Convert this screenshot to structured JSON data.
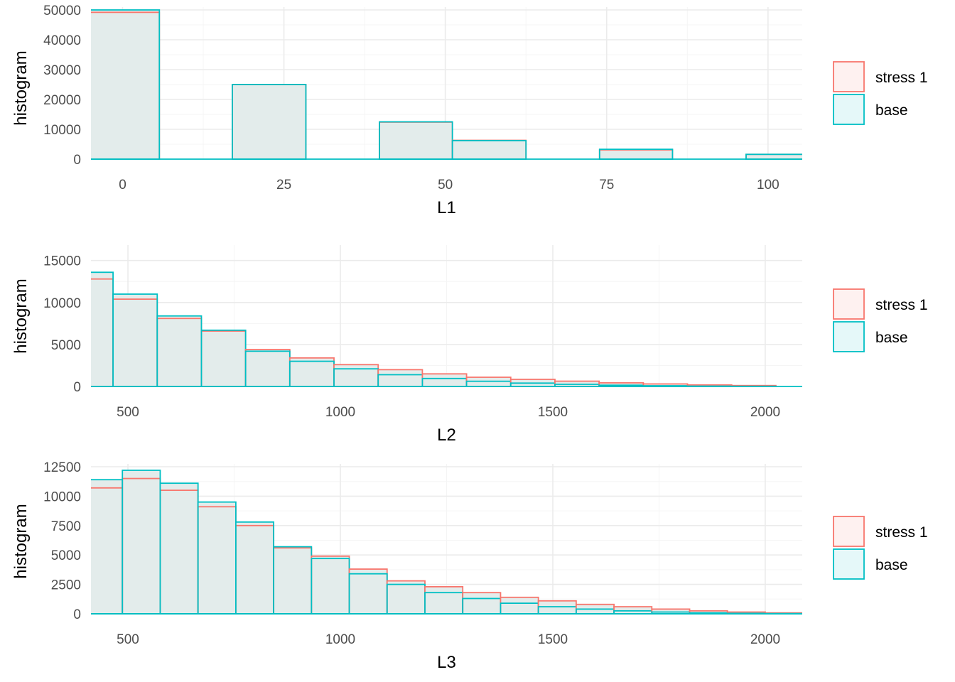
{
  "legend": {
    "entries": [
      {
        "label": "stress 1",
        "stroke": "#F8766D",
        "fill": "#FEF1F0"
      },
      {
        "label": "base",
        "stroke": "#00BFC4",
        "fill": "#E5F8F9"
      }
    ]
  },
  "colors": {
    "stress": "#F8766D",
    "base": "#00BFC4",
    "overlap_fill": "#E3ECEB",
    "grid_major": "#EBEBEB",
    "grid_minor": "#F5F5F5",
    "background": "#FFFFFF"
  },
  "chart_data": [
    {
      "type": "bar",
      "subtype": "overlaid-histogram",
      "xlabel": "L1",
      "ylabel": "histogram",
      "xlim": [
        -4.9,
        105.3
      ],
      "ylim": [
        0,
        50000
      ],
      "x_ticks": [
        0,
        25,
        50,
        75,
        100
      ],
      "y_ticks": [
        0,
        10000,
        20000,
        30000,
        40000,
        50000
      ],
      "grid": true,
      "legend_position": "right",
      "bin_edges": [
        -5.7,
        5.7,
        17.0,
        28.4,
        39.8,
        51.1,
        62.5,
        73.9,
        85.2,
        96.6,
        108.0
      ],
      "series": [
        {
          "name": "stress 1",
          "values": [
            49200,
            0,
            25000,
            0,
            12400,
            6300,
            0,
            3100,
            0,
            1600
          ]
        },
        {
          "name": "base",
          "values": [
            50000,
            0,
            25000,
            0,
            12500,
            6200,
            0,
            3300,
            0,
            1600
          ]
        }
      ]
    },
    {
      "type": "bar",
      "subtype": "overlaid-histogram",
      "xlabel": "L2",
      "ylabel": "histogram",
      "xlim": [
        413,
        2087
      ],
      "ylim": [
        0,
        16500
      ],
      "x_ticks": [
        500,
        1000,
        1500,
        2000
      ],
      "y_ticks": [
        0,
        5000,
        10000,
        15000
      ],
      "grid": true,
      "legend_position": "right",
      "bin_edges": [
        361,
        465,
        569,
        673,
        777,
        881,
        985,
        1089,
        1193,
        1297,
        1401,
        1505,
        1609,
        1713,
        1817,
        1921,
        2025
      ],
      "series": [
        {
          "name": "stress 1",
          "values": [
            12800,
            10400,
            8100,
            6600,
            4400,
            3400,
            2600,
            2000,
            1500,
            1100,
            850,
            630,
            430,
            300,
            180,
            110
          ]
        },
        {
          "name": "base",
          "values": [
            13600,
            11000,
            8400,
            6700,
            4200,
            3000,
            2100,
            1400,
            950,
            620,
            400,
            260,
            150,
            80,
            40,
            20
          ]
        }
      ]
    },
    {
      "type": "bar",
      "subtype": "overlaid-histogram",
      "xlabel": "L3",
      "ylabel": "histogram",
      "xlim": [
        413,
        2087
      ],
      "ylim": [
        0,
        12500
      ],
      "x_ticks": [
        500,
        1000,
        1500,
        2000
      ],
      "y_ticks": [
        0,
        2500,
        5000,
        7500,
        10000,
        12500
      ],
      "grid": true,
      "legend_position": "right",
      "bin_edges": [
        398,
        487,
        576,
        665,
        754,
        843,
        932,
        1021,
        1110,
        1199,
        1288,
        1377,
        1466,
        1555,
        1644,
        1733,
        1822,
        1911,
        2000,
        2089
      ],
      "series": [
        {
          "name": "stress 1",
          "values": [
            10700,
            11500,
            10500,
            9100,
            7500,
            5600,
            4900,
            3800,
            2800,
            2300,
            1800,
            1400,
            1100,
            800,
            600,
            400,
            250,
            150,
            80
          ]
        },
        {
          "name": "base",
          "values": [
            11400,
            12200,
            11100,
            9500,
            7800,
            5700,
            4700,
            3400,
            2500,
            1800,
            1300,
            900,
            600,
            400,
            250,
            150,
            80,
            40,
            20
          ]
        }
      ]
    }
  ]
}
